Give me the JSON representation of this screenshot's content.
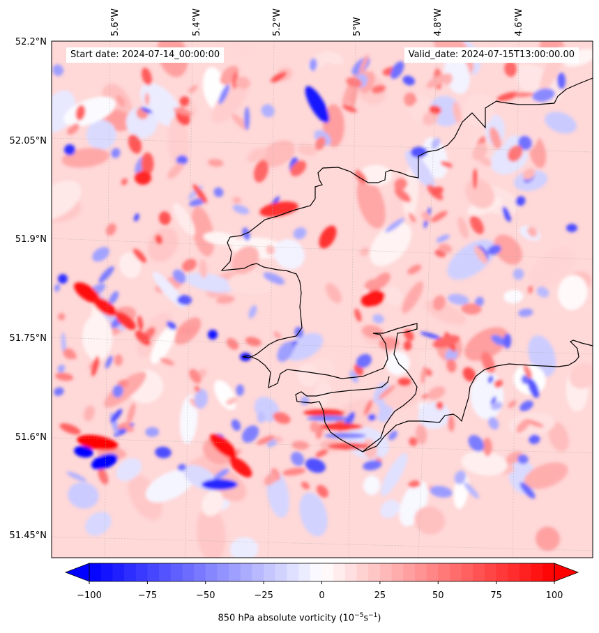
{
  "map": {
    "start_date": "Start date: 2024-07-14_00:00:00",
    "valid_date": "Valid_date: 2024-07-15T13:00:00.00",
    "lon_labels": [
      "5.6°W",
      "5.4°W",
      "5.2°W",
      "5°W",
      "4.8°W",
      "4.6°W"
    ],
    "lat_labels": [
      "52.2°N",
      "52.05°N",
      "51.9°N",
      "51.75°N",
      "51.6°N",
      "51.45°N"
    ],
    "field_colors": {
      "positive": "#ff0000",
      "negative": "#0000ff",
      "neutral": "#ffffff"
    },
    "coastline_color": "#000000"
  },
  "colorbar": {
    "ticks": [
      "−100",
      "−75",
      "−50",
      "−25",
      "0",
      "25",
      "50",
      "75",
      "100"
    ],
    "min": -100,
    "max": 100,
    "step": 5,
    "extend": "both",
    "label": "850 hPa absolute vorticity (10",
    "label_exp1": "−5",
    "label_mid": "s",
    "label_exp2": "−1",
    "label_end": ")"
  }
}
